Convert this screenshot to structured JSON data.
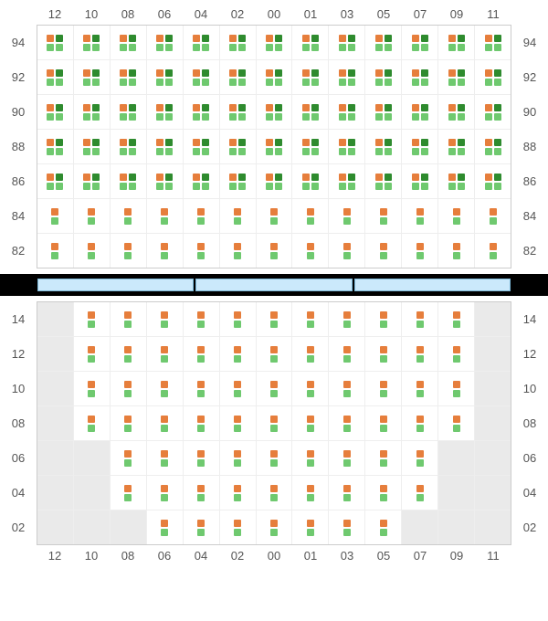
{
  "colors": {
    "occupied1": "#e67e3c",
    "occupied2": "#2e8b2e",
    "avail1": "#6fc96f",
    "avail2": "#6fc96f",
    "cell_border": "#eeeeee",
    "grid_border": "#cccccc",
    "empty_bg": "#eaeaea",
    "label_text": "#555555",
    "divider_bg": "#000000",
    "divider_fill": "#cbe9fb",
    "divider_border": "#7bb8d8"
  },
  "layout": {
    "columns": [
      "12",
      "10",
      "08",
      "06",
      "04",
      "02",
      "00",
      "01",
      "03",
      "05",
      "07",
      "09",
      "11"
    ],
    "top": {
      "rows": [
        "94",
        "92",
        "90",
        "88",
        "86",
        "84",
        "82"
      ],
      "cells": [
        {
          "r": "94",
          "pattern": "quad_all"
        },
        {
          "r": "92",
          "pattern": "quad_all"
        },
        {
          "r": "90",
          "pattern": "quad_all"
        },
        {
          "r": "88",
          "pattern": "quad_all"
        },
        {
          "r": "86",
          "pattern": "quad_all"
        },
        {
          "r": "84",
          "pattern": "pair_all"
        },
        {
          "r": "82",
          "pattern": "pair_all"
        }
      ]
    },
    "divider_segments": 3,
    "bottom": {
      "rows": [
        "14",
        "12",
        "10",
        "08",
        "06",
        "04",
        "02"
      ],
      "row_specs": [
        {
          "r": "14",
          "gray": [
            "12",
            "11"
          ],
          "fill": [
            "10",
            "08",
            "06",
            "04",
            "02",
            "00",
            "01",
            "03",
            "05",
            "07",
            "09"
          ]
        },
        {
          "r": "12",
          "gray": [
            "12",
            "11"
          ],
          "fill": [
            "10",
            "08",
            "06",
            "04",
            "02",
            "00",
            "01",
            "03",
            "05",
            "07",
            "09"
          ]
        },
        {
          "r": "10",
          "gray": [
            "12",
            "11"
          ],
          "fill": [
            "10",
            "08",
            "06",
            "04",
            "02",
            "00",
            "01",
            "03",
            "05",
            "07",
            "09"
          ]
        },
        {
          "r": "08",
          "gray": [
            "12",
            "11"
          ],
          "fill": [
            "10",
            "08",
            "06",
            "04",
            "02",
            "00",
            "01",
            "03",
            "05",
            "07",
            "09"
          ]
        },
        {
          "r": "06",
          "gray": [
            "12",
            "10",
            "09",
            "11"
          ],
          "fill": [
            "08",
            "06",
            "04",
            "02",
            "00",
            "01",
            "03",
            "05",
            "07"
          ]
        },
        {
          "r": "04",
          "gray": [
            "12",
            "10",
            "09",
            "11"
          ],
          "fill": [
            "08",
            "06",
            "04",
            "02",
            "00",
            "01",
            "03",
            "05",
            "07"
          ]
        },
        {
          "r": "02",
          "gray": [
            "12",
            "10",
            "08",
            "07",
            "09",
            "11"
          ],
          "fill": [
            "06",
            "04",
            "02",
            "00",
            "01",
            "03",
            "05"
          ]
        }
      ]
    }
  },
  "typography": {
    "label_fontsize": 13
  }
}
